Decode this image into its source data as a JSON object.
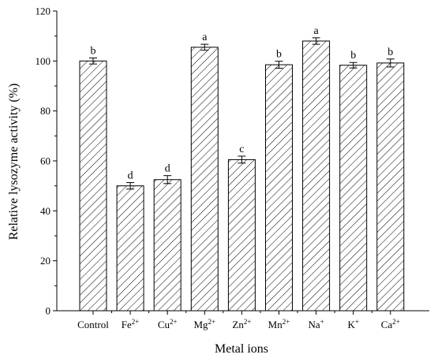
{
  "chart_data": {
    "type": "bar",
    "title": "",
    "xlabel": "Metal ions",
    "ylabel": "Relative lysozyme activity (%)",
    "ylim": [
      0,
      120
    ],
    "yticks": [
      0,
      20,
      40,
      60,
      80,
      100,
      120
    ],
    "grid": false,
    "bar_fill": "hatched",
    "categories": [
      {
        "base": "Control",
        "sup": ""
      },
      {
        "base": "Fe",
        "sup": "2+"
      },
      {
        "base": "Cu",
        "sup": "2+"
      },
      {
        "base": "Mg",
        "sup": "2+"
      },
      {
        "base": "Zn",
        "sup": "2+"
      },
      {
        "base": "Mn",
        "sup": "2+"
      },
      {
        "base": "Na",
        "sup": "+"
      },
      {
        "base": "K",
        "sup": "+"
      },
      {
        "base": "Ca",
        "sup": "2+"
      }
    ],
    "values": [
      100,
      50,
      52.5,
      105.5,
      60.5,
      98.5,
      108,
      98.3,
      99.2
    ],
    "errors": [
      1.2,
      1.3,
      1.6,
      1.2,
      1.4,
      1.4,
      1.3,
      1.1,
      1.6
    ],
    "significance": [
      "b",
      "d",
      "d",
      "a",
      "c",
      "b",
      "a",
      "b",
      "b"
    ]
  }
}
